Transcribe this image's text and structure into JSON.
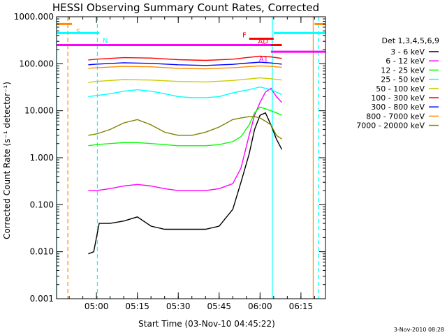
{
  "chart_data": {
    "type": "line",
    "title": "HESSI Observing Summary Count Rates, Corrected",
    "xlabel": "Start Time (03-Nov-10 04:45:22)",
    "ylabel": "Corrected Count Rate (s⁻¹ detector⁻¹)",
    "y_scale": "log",
    "ylim": [
      0.001,
      1000
    ],
    "xlim": [
      "04:45:22",
      "06:24:00"
    ],
    "y_ticks": [
      "0.001",
      "0.010",
      "0.100",
      "1.000",
      "10.000",
      "100.000",
      "1000.000"
    ],
    "x_ticks": [
      "05:00",
      "05:15",
      "05:30",
      "05:45",
      "06:00",
      "06:15"
    ],
    "legend_title": "Det 1,3,4,5,6,9",
    "legend_position": "right, outside plot",
    "timestamp": "3-Nov-2010 08:28",
    "series": [
      {
        "name": "3 - 6 keV",
        "color": "#000000",
        "x": [
          "04:57:00",
          "04:59:00",
          "05:01:00",
          "05:05:00",
          "05:10:00",
          "05:15:00",
          "05:20:00",
          "05:25:00",
          "05:30:00",
          "05:35:00",
          "05:40:00",
          "05:45:00",
          "05:50:00",
          "05:53:00",
          "05:56:00",
          "05:58:00",
          "06:00:00",
          "06:02:00",
          "06:04:00",
          "06:06:00",
          "06:08:00"
        ],
        "values": [
          0.009,
          0.01,
          0.04,
          0.04,
          0.045,
          0.055,
          0.035,
          0.03,
          0.03,
          0.03,
          0.03,
          0.035,
          0.08,
          0.3,
          1.2,
          4,
          8,
          9,
          5,
          2.5,
          1.5
        ]
      },
      {
        "name": "6 - 12 keV",
        "color": "#ff00ff",
        "x": [
          "04:57:00",
          "05:00:00",
          "05:05:00",
          "05:10:00",
          "05:15:00",
          "05:20:00",
          "05:25:00",
          "05:30:00",
          "05:35:00",
          "05:40:00",
          "05:45:00",
          "05:50:00",
          "05:53:00",
          "05:56:00",
          "05:58:00",
          "06:00:00",
          "06:02:00",
          "06:04:00",
          "06:06:00",
          "06:08:00"
        ],
        "values": [
          0.2,
          0.2,
          0.22,
          0.25,
          0.27,
          0.25,
          0.22,
          0.2,
          0.2,
          0.2,
          0.22,
          0.28,
          0.6,
          3,
          8,
          15,
          25,
          30,
          20,
          15
        ]
      },
      {
        "name": "12 - 25 keV",
        "color": "#00ff00",
        "x": [
          "04:57:00",
          "05:00:00",
          "05:05:00",
          "05:10:00",
          "05:15:00",
          "05:20:00",
          "05:25:00",
          "05:30:00",
          "05:35:00",
          "05:40:00",
          "05:45:00",
          "05:50:00",
          "05:53:00",
          "05:56:00",
          "05:58:00",
          "06:00:00",
          "06:02:00",
          "06:04:00",
          "06:06:00",
          "06:08:00"
        ],
        "values": [
          1.8,
          1.9,
          2.0,
          2.1,
          2.1,
          2.0,
          1.9,
          1.8,
          1.8,
          1.8,
          1.9,
          2.2,
          2.8,
          5,
          9,
          12,
          11,
          10,
          9,
          8
        ]
      },
      {
        "name": "25 - 50 keV",
        "color": "#00ffff",
        "x": [
          "04:57:00",
          "05:00:00",
          "05:05:00",
          "05:10:00",
          "05:15:00",
          "05:20:00",
          "05:25:00",
          "05:30:00",
          "05:35:00",
          "05:40:00",
          "05:45:00",
          "05:50:00",
          "05:53:00",
          "05:56:00",
          "05:58:00",
          "06:00:00",
          "06:02:00",
          "06:04:00",
          "06:06:00",
          "06:08:00"
        ],
        "values": [
          20,
          21,
          23,
          26,
          28,
          26,
          23,
          20,
          19,
          19,
          20,
          24,
          26,
          28,
          30,
          32,
          30,
          28,
          25,
          22
        ]
      },
      {
        "name": "50 - 100 keV",
        "color": "#cccc00",
        "x": [
          "04:57:00",
          "05:00:00",
          "05:10:00",
          "05:20:00",
          "05:30:00",
          "05:40:00",
          "05:50:00",
          "05:55:00",
          "06:00:00",
          "06:04:00",
          "06:08:00"
        ],
        "values": [
          40,
          42,
          46,
          45,
          42,
          41,
          44,
          47,
          50,
          48,
          45
        ]
      },
      {
        "name": "100 - 300 keV",
        "color": "#ff0000",
        "x": [
          "04:57:00",
          "05:00:00",
          "05:10:00",
          "05:20:00",
          "05:30:00",
          "05:40:00",
          "05:50:00",
          "05:55:00",
          "06:00:00",
          "06:04:00",
          "06:08:00"
        ],
        "values": [
          120,
          125,
          135,
          132,
          122,
          118,
          125,
          135,
          145,
          140,
          130
        ]
      },
      {
        "name": "300 - 800 keV",
        "color": "#0000ff",
        "x": [
          "04:57:00",
          "05:00:00",
          "05:10:00",
          "05:20:00",
          "05:30:00",
          "05:40:00",
          "05:50:00",
          "05:55:00",
          "06:00:00",
          "06:04:00",
          "06:08:00"
        ],
        "values": [
          95,
          98,
          105,
          102,
          95,
          92,
          97,
          103,
          108,
          104,
          98
        ]
      },
      {
        "name": "800 - 7000 keV",
        "color": "#ff8c00",
        "x": [
          "04:57:00",
          "05:00:00",
          "05:10:00",
          "05:20:00",
          "05:30:00",
          "05:40:00",
          "05:50:00",
          "05:55:00",
          "06:00:00",
          "06:04:00",
          "06:08:00"
        ],
        "values": [
          80,
          82,
          88,
          86,
          80,
          78,
          82,
          86,
          90,
          88,
          84
        ]
      },
      {
        "name": "7000 - 20000 keV",
        "color": "#808000",
        "x": [
          "04:57:00",
          "05:00:00",
          "05:05:00",
          "05:10:00",
          "05:15:00",
          "05:20:00",
          "05:25:00",
          "05:30:00",
          "05:35:00",
          "05:40:00",
          "05:45:00",
          "05:50:00",
          "05:53:00",
          "05:56:00",
          "05:58:00",
          "06:00:00",
          "06:02:00",
          "06:04:00",
          "06:06:00",
          "06:08:00"
        ],
        "values": [
          3,
          3.2,
          4,
          5.5,
          6.5,
          5,
          3.5,
          3,
          3,
          3.5,
          4.5,
          6.5,
          7,
          7.5,
          7.5,
          7,
          6,
          5,
          3,
          2.5
        ]
      }
    ],
    "flag_bars": [
      {
        "label": "S",
        "color": "#ff8c00",
        "start": "04:45:22",
        "end": "04:51:00",
        "level": 700
      },
      {
        "label": "N",
        "color": "#00ffff",
        "start": "04:45:22",
        "end": "05:01:00",
        "level": 450
      },
      {
        "label": "",
        "color": "#ff00ff",
        "start": "04:45:22",
        "end": "06:06:00",
        "level": 250
      },
      {
        "label": "F",
        "color": "#ff0000",
        "start": "05:56:00",
        "end": "06:05:00",
        "level": 340
      },
      {
        "label": "AD",
        "color": "#ff0000",
        "start": "06:04:00",
        "end": "06:08:00",
        "level": 250
      },
      {
        "label": "A1",
        "color": "#ff00ff",
        "start": "06:04:00",
        "end": "06:24:00",
        "level": 180
      },
      {
        "label": "",
        "color": "#00ffff",
        "start": "06:05:00",
        "end": "06:24:00",
        "level": 450
      },
      {
        "label": "",
        "color": "#ff8c00",
        "start": "06:20:00",
        "end": "06:24:00",
        "level": 700
      }
    ],
    "vertical_markers": [
      {
        "time": "04:45:22",
        "color": "#00ffff",
        "style": "solid"
      },
      {
        "time": "04:49:30",
        "color": "#ff8c00",
        "style": "dashed"
      },
      {
        "time": "05:00:20",
        "color": "#00ffff",
        "style": "dashed"
      },
      {
        "time": "06:04:30",
        "color": "#00ffff",
        "style": "solid"
      },
      {
        "time": "06:19:30",
        "color": "#ff8c00",
        "style": "solid"
      },
      {
        "time": "06:21:30",
        "color": "#00ffff",
        "style": "dashed"
      }
    ]
  }
}
